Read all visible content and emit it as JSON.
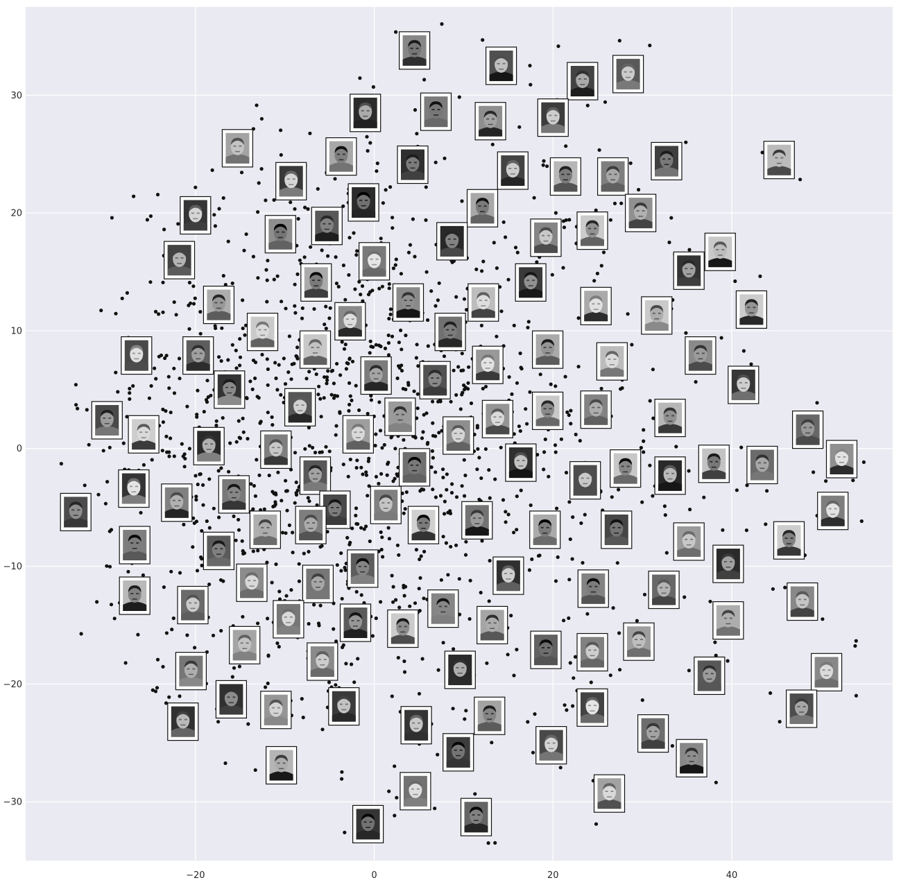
{
  "chart_data": {
    "type": "scatter",
    "title": "",
    "xlabel": "",
    "ylabel": "",
    "xlim": [
      -39,
      58
    ],
    "ylim": [
      -35,
      37.5
    ],
    "xticks": [
      -20,
      0,
      20,
      40
    ],
    "yticks": [
      -30,
      -20,
      -10,
      0,
      10,
      20,
      30
    ],
    "grid": true,
    "colors": {
      "background": "#eaeaf2",
      "grid": "#ffffff",
      "points": "#111111",
      "thumb_border": "#111111",
      "thumb_fill": "#ffffff"
    },
    "point_seed": 7,
    "point_count": 1100,
    "point_cluster": {
      "center": [
        -3,
        1
      ],
      "spread": [
        14,
        11
      ]
    },
    "thumbnails": [
      [
        4.5,
        33.8
      ],
      [
        14.2,
        32.5
      ],
      [
        23.3,
        31.2
      ],
      [
        28.4,
        31.8
      ],
      [
        -1,
        28.5
      ],
      [
        6.9,
        28.6
      ],
      [
        13,
        27.8
      ],
      [
        20,
        28.1
      ],
      [
        -15.3,
        25.5
      ],
      [
        -3.7,
        24.8
      ],
      [
        4.3,
        24.1
      ],
      [
        15.5,
        23.6
      ],
      [
        21.4,
        23.1
      ],
      [
        26.7,
        23.1
      ],
      [
        32.7,
        24.4
      ],
      [
        45.3,
        24.5
      ],
      [
        -9.3,
        22.7
      ],
      [
        -1.2,
        20.9
      ],
      [
        12.1,
        20.4
      ],
      [
        29.8,
        20
      ],
      [
        -20,
        19.8
      ],
      [
        -10.5,
        18.2
      ],
      [
        -5.3,
        18.9
      ],
      [
        8.7,
        17.6
      ],
      [
        19.2,
        17.9
      ],
      [
        24.4,
        18.5
      ],
      [
        38.7,
        16.7
      ],
      [
        -21.8,
        16
      ],
      [
        -6.5,
        14.1
      ],
      [
        0,
        15.9
      ],
      [
        17.5,
        14.1
      ],
      [
        35.2,
        15.1
      ],
      [
        -17.4,
        12.2
      ],
      [
        -2.7,
        10.8
      ],
      [
        3.8,
        12.4
      ],
      [
        12.2,
        12.4
      ],
      [
        24.8,
        12.1
      ],
      [
        31.6,
        11.3
      ],
      [
        42.2,
        11.8
      ],
      [
        -26.6,
        7.9
      ],
      [
        -19.7,
        7.9
      ],
      [
        -12.5,
        9.9
      ],
      [
        -6.6,
        8.4
      ],
      [
        8.5,
        9.9
      ],
      [
        19.4,
        8.4
      ],
      [
        26.6,
        7.4
      ],
      [
        36.5,
        7.9
      ],
      [
        41.3,
        5.4
      ],
      [
        0.2,
        6.2
      ],
      [
        6.8,
        5.8
      ],
      [
        12.7,
        7.1
      ],
      [
        -16.2,
        5
      ],
      [
        -8.3,
        3.5
      ],
      [
        -29.9,
        2.4
      ],
      [
        -25.8,
        1.2
      ],
      [
        -18.5,
        0.2
      ],
      [
        -11,
        -0.1
      ],
      [
        -1.8,
        1.2
      ],
      [
        2.9,
        2.7
      ],
      [
        9.4,
        1.1
      ],
      [
        13.8,
        2.5
      ],
      [
        19.4,
        3.2
      ],
      [
        24.8,
        3.3
      ],
      [
        33.1,
        2.6
      ],
      [
        48.5,
        1.6
      ],
      [
        52.3,
        -0.9
      ],
      [
        -6.6,
        -2.3
      ],
      [
        4.5,
        -1.6
      ],
      [
        16.4,
        -1.2
      ],
      [
        23.6,
        -2.7
      ],
      [
        28.1,
        -1.7
      ],
      [
        33.1,
        -2.3
      ],
      [
        38,
        -1.3
      ],
      [
        43.4,
        -1.4
      ],
      [
        -26.9,
        -3.4
      ],
      [
        -22.1,
        -4.6
      ],
      [
        -15.7,
        -3.9
      ],
      [
        -33.4,
        -5.4
      ],
      [
        -4.4,
        -5.2
      ],
      [
        1.3,
        -4.8
      ],
      [
        -12.2,
        -6.9
      ],
      [
        -7.1,
        -6.5
      ],
      [
        5.5,
        -6.5
      ],
      [
        11.5,
        -6.1
      ],
      [
        19.1,
        -6.9
      ],
      [
        27.1,
        -6.9
      ],
      [
        35.2,
        -7.9
      ],
      [
        46.4,
        -7.8
      ],
      [
        51.3,
        -5.3
      ],
      [
        -26.8,
        -8.2
      ],
      [
        -17.4,
        -8.7
      ],
      [
        -1.3,
        -10.2
      ],
      [
        -13.7,
        -11.4
      ],
      [
        -6.3,
        -11.5
      ],
      [
        15,
        -10.8
      ],
      [
        24.5,
        -11.9
      ],
      [
        32.4,
        -12
      ],
      [
        39.6,
        -9.8
      ],
      [
        47.9,
        -13
      ],
      [
        -26.8,
        -12.5
      ],
      [
        -20.3,
        -13.3
      ],
      [
        -9.6,
        -14.5
      ],
      [
        -2.1,
        -14.8
      ],
      [
        3.2,
        -15.3
      ],
      [
        7.7,
        -13.6
      ],
      [
        13.2,
        -15
      ],
      [
        -14.5,
        -16.7
      ],
      [
        19.2,
        -17.1
      ],
      [
        24.4,
        -17.3
      ],
      [
        29.6,
        -16.4
      ],
      [
        39.6,
        -14.6
      ],
      [
        -5.8,
        -18.1
      ],
      [
        9.6,
        -18.8
      ],
      [
        -20.5,
        -18.9
      ],
      [
        -16,
        -21.3
      ],
      [
        -11,
        -22.2
      ],
      [
        -3.4,
        -21.9
      ],
      [
        12.9,
        -22.7
      ],
      [
        24.4,
        -22
      ],
      [
        37.5,
        -19.3
      ],
      [
        50.6,
        -19
      ],
      [
        -21.4,
        -23.2
      ],
      [
        4.7,
        -23.5
      ],
      [
        47.8,
        -22.1
      ],
      [
        9.4,
        -25.8
      ],
      [
        19.8,
        -25.2
      ],
      [
        31.2,
        -24.2
      ],
      [
        35.5,
        -26.3
      ],
      [
        -10.4,
        -26.9
      ],
      [
        4.6,
        -29.1
      ],
      [
        26.3,
        -29.3
      ],
      [
        -0.7,
        -31.9
      ],
      [
        11.4,
        -31.3
      ]
    ]
  }
}
